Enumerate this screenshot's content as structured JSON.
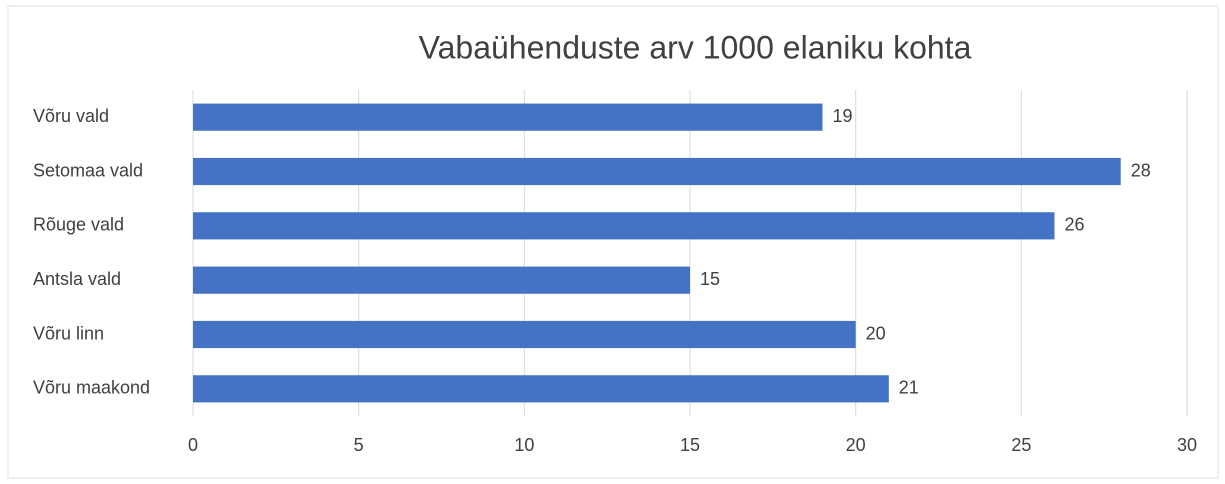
{
  "chart_data": {
    "type": "barh",
    "title": "Vabaühenduste arv 1000 elaniku kohta",
    "categories": [
      "Võru vald",
      "Setomaa vald",
      "Rõuge vald",
      "Antsla vald",
      "Võru linn",
      "Võru maakond"
    ],
    "values": [
      19,
      28,
      26,
      15,
      20,
      21
    ],
    "color": "#4472c4",
    "xlim": [
      0,
      30
    ],
    "xticks": [
      0,
      5,
      10,
      15,
      20,
      25,
      30
    ],
    "grid": true
  }
}
